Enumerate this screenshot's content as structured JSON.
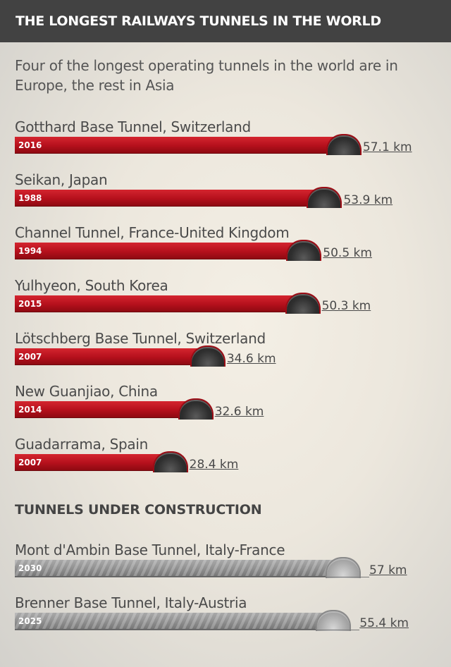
{
  "header": {
    "title": "THE LONGEST RAILWAYS TUNNELS IN THE WORLD"
  },
  "subtitle": "Four of the longest operating tunnels in the world are in Europe, the rest in Asia",
  "section_heading": "TUNNELS UNDER CONSTRUCTION",
  "colors": {
    "operating": "#c41a24",
    "construction": "#8f8f8f",
    "header": "#424242"
  },
  "chart_data": [
    {
      "type": "bar",
      "orientation": "horizontal",
      "unit": "km",
      "categories": [
        "Gotthard Base Tunnel, Switzerland",
        "Seikan, Japan",
        "Channel Tunnel, France-United Kingdom",
        "Yulhyeon, South Korea",
        "Lötschberg Base Tunnel, Switzerland",
        "New Guanjiao, China",
        "Guadarrama, Spain"
      ],
      "years": [
        "2016",
        "1988",
        "1994",
        "2015",
        "2007",
        "2014",
        "2007"
      ],
      "values": [
        57.1,
        53.9,
        50.5,
        50.3,
        34.6,
        32.6,
        28.4
      ],
      "value_labels": [
        "57.1 km",
        "53.9 km",
        "50.5 km",
        "50.3 km",
        "34.6 km",
        "32.6 km",
        "28.4 km"
      ]
    },
    {
      "type": "bar",
      "orientation": "horizontal",
      "unit": "km",
      "categories": [
        "Mont d'Ambin Base Tunnel, Italy-France",
        "Brenner Base Tunnel, Italy-Austria"
      ],
      "years": [
        "2030",
        "2025"
      ],
      "values": [
        57,
        55.4
      ],
      "value_labels": [
        "57 km",
        "55.4 km"
      ]
    }
  ]
}
